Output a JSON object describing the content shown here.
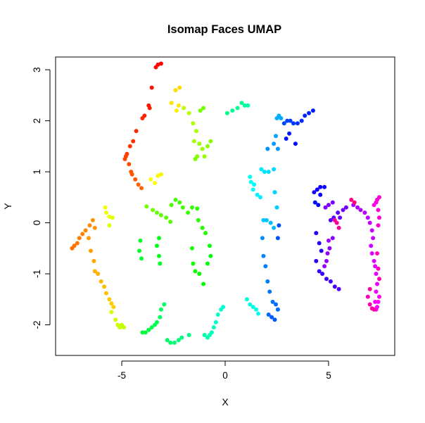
{
  "chart_data": {
    "type": "scatter",
    "title": "Isomap Faces UMAP",
    "xlabel": "X",
    "ylabel": "Y",
    "xlim": [
      -8.2,
      8.2
    ],
    "ylim": [
      -2.6,
      3.25
    ],
    "x_ticks": [
      -5,
      0,
      5
    ],
    "x_tick_labels": [
      "-5",
      "0",
      "5"
    ],
    "y_ticks": [
      -2,
      -1,
      0,
      1,
      2,
      3
    ],
    "y_tick_labels": [
      "-2",
      "-1",
      "0",
      "1",
      "2",
      "3"
    ],
    "grid": false,
    "legend": "none",
    "color_scale": "rainbow hue by point order (red → yellow → green → cyan → blue → magenta → pink)",
    "points": [
      [
        -3.1,
        3.12
      ],
      [
        -3.25,
        3.1
      ],
      [
        -3.35,
        3.05
      ],
      [
        -3.55,
        2.65
      ],
      [
        -3.7,
        2.3
      ],
      [
        -3.65,
        2.25
      ],
      [
        -3.9,
        2.1
      ],
      [
        -4.0,
        2.05
      ],
      [
        -4.3,
        1.8
      ],
      [
        -4.45,
        1.6
      ],
      [
        -4.6,
        1.5
      ],
      [
        -4.75,
        1.35
      ],
      [
        -4.8,
        1.3
      ],
      [
        -4.85,
        1.25
      ],
      [
        -4.65,
        1.15
      ],
      [
        -4.55,
        1.0
      ],
      [
        -4.5,
        0.95
      ],
      [
        -4.35,
        0.85
      ],
      [
        -4.2,
        0.75
      ],
      [
        -4.05,
        0.68
      ],
      [
        -7.4,
        -0.5
      ],
      [
        -7.3,
        -0.45
      ],
      [
        -7.15,
        -0.4
      ],
      [
        -7.05,
        -0.3
      ],
      [
        -6.9,
        -0.22
      ],
      [
        -6.75,
        -0.15
      ],
      [
        -6.55,
        -0.05
      ],
      [
        -6.4,
        0.05
      ],
      [
        -6.3,
        -0.1
      ],
      [
        -6.6,
        -0.3
      ],
      [
        -6.5,
        -0.55
      ],
      [
        -6.35,
        -0.75
      ],
      [
        -6.3,
        -0.95
      ],
      [
        -6.15,
        -1.0
      ],
      [
        -6.0,
        -1.15
      ],
      [
        -5.85,
        -1.25
      ],
      [
        -5.75,
        -1.38
      ],
      [
        -5.6,
        -1.5
      ],
      [
        -5.5,
        -1.58
      ],
      [
        -5.4,
        -1.65
      ],
      [
        -2.2,
        2.65
      ],
      [
        -2.4,
        2.6
      ],
      [
        -2.6,
        2.35
      ],
      [
        -2.25,
        2.3
      ],
      [
        -2.35,
        2.2
      ],
      [
        -3.1,
        0.95
      ],
      [
        -3.25,
        0.92
      ],
      [
        -3.4,
        0.78
      ],
      [
        -3.6,
        0.85
      ],
      [
        -5.8,
        0.3
      ],
      [
        -5.75,
        0.2
      ],
      [
        -5.6,
        0.12
      ],
      [
        -5.45,
        0.1
      ],
      [
        -5.6,
        -0.05
      ],
      [
        -5.5,
        -1.75
      ],
      [
        -5.3,
        -1.9
      ],
      [
        -5.2,
        -2.0
      ],
      [
        -5.1,
        -2.05
      ],
      [
        -5.0,
        -2.0
      ],
      [
        -4.9,
        -2.05
      ],
      [
        -2.0,
        2.25
      ],
      [
        -1.75,
        2.15
      ],
      [
        -1.55,
        1.95
      ],
      [
        -1.4,
        1.8
      ],
      [
        -1.5,
        1.6
      ],
      [
        -1.25,
        1.55
      ],
      [
        -1.1,
        1.45
      ],
      [
        -1.0,
        1.3
      ],
      [
        -0.85,
        1.5
      ],
      [
        -0.7,
        1.6
      ],
      [
        -1.35,
        1.3
      ],
      [
        -1.45,
        1.25
      ],
      [
        -1.2,
        2.2
      ],
      [
        -1.05,
        2.25
      ],
      [
        -3.8,
        0.32
      ],
      [
        -3.5,
        0.25
      ],
      [
        -3.3,
        0.2
      ],
      [
        -3.1,
        0.15
      ],
      [
        -2.85,
        0.1
      ],
      [
        -2.65,
        0.02
      ],
      [
        -2.6,
        0.35
      ],
      [
        -2.4,
        0.45
      ],
      [
        -2.2,
        0.4
      ],
      [
        -2.05,
        0.3
      ],
      [
        -1.8,
        0.2
      ],
      [
        -1.6,
        0.3
      ],
      [
        -1.35,
        0.28
      ],
      [
        -1.3,
        0.05
      ],
      [
        -1.1,
        -0.1
      ],
      [
        -0.95,
        -0.2
      ],
      [
        -1.6,
        -0.5
      ],
      [
        -1.55,
        -0.8
      ],
      [
        -1.45,
        -0.95
      ],
      [
        -1.25,
        -1.0
      ],
      [
        -1.05,
        -1.2
      ],
      [
        -0.85,
        -0.8
      ],
      [
        -0.75,
        -0.45
      ],
      [
        -0.7,
        -0.65
      ],
      [
        -3.2,
        -0.3
      ],
      [
        -3.3,
        -0.45
      ],
      [
        -3.2,
        -0.65
      ],
      [
        -3.15,
        -0.8
      ],
      [
        -4.1,
        -0.35
      ],
      [
        -4.15,
        -0.55
      ],
      [
        -4.05,
        -0.7
      ],
      [
        -4.0,
        -2.15
      ],
      [
        -3.85,
        -2.15
      ],
      [
        -3.7,
        -2.1
      ],
      [
        -3.55,
        -2.05
      ],
      [
        -3.4,
        -2.0
      ],
      [
        -3.3,
        -1.95
      ],
      [
        -3.15,
        -1.85
      ],
      [
        -3.1,
        -1.7
      ],
      [
        -2.95,
        -1.6
      ],
      [
        -2.8,
        -2.3
      ],
      [
        -2.65,
        -2.35
      ],
      [
        -2.45,
        -2.35
      ],
      [
        -2.25,
        -2.3
      ],
      [
        -2.1,
        -2.25
      ],
      [
        -1.75,
        -2.2
      ],
      [
        0.1,
        2.15
      ],
      [
        0.35,
        2.2
      ],
      [
        0.6,
        2.25
      ],
      [
        0.8,
        2.35
      ],
      [
        0.95,
        2.3
      ],
      [
        1.1,
        2.3
      ],
      [
        -1.0,
        -2.2
      ],
      [
        -0.85,
        -2.25
      ],
      [
        -0.75,
        -2.2
      ],
      [
        -0.65,
        -2.15
      ],
      [
        -0.55,
        -2.05
      ],
      [
        -0.45,
        -1.95
      ],
      [
        -0.35,
        -1.8
      ],
      [
        -0.2,
        -1.7
      ],
      [
        -0.1,
        -1.65
      ],
      [
        1.05,
        -1.5
      ],
      [
        1.2,
        -1.6
      ],
      [
        1.35,
        -1.65
      ],
      [
        1.5,
        -1.7
      ],
      [
        1.6,
        -1.78
      ],
      [
        1.2,
        0.9
      ],
      [
        1.25,
        0.8
      ],
      [
        1.35,
        0.65
      ],
      [
        1.4,
        0.75
      ],
      [
        1.55,
        0.55
      ],
      [
        1.7,
        0.5
      ],
      [
        1.75,
        1.05
      ],
      [
        1.9,
        1.0
      ],
      [
        2.1,
        1.0
      ],
      [
        2.35,
        1.05
      ],
      [
        2.4,
        0.6
      ],
      [
        2.5,
        0.3
      ],
      [
        1.85,
        0.05
      ],
      [
        2.0,
        0.05
      ],
      [
        2.2,
        0.0
      ],
      [
        2.35,
        -0.1
      ],
      [
        2.5,
        2.05
      ],
      [
        2.6,
        2.1
      ],
      [
        2.7,
        2.05
      ],
      [
        2.45,
        1.7
      ],
      [
        2.35,
        1.55
      ],
      [
        2.55,
        1.45
      ],
      [
        2.05,
        1.45
      ],
      [
        1.8,
        -0.3
      ],
      [
        1.85,
        -0.65
      ],
      [
        1.95,
        -0.85
      ],
      [
        2.05,
        -1.15
      ],
      [
        2.15,
        -1.35
      ],
      [
        2.3,
        -1.55
      ],
      [
        2.45,
        -1.6
      ],
      [
        2.55,
        -1.7
      ],
      [
        2.1,
        -1.8
      ],
      [
        2.25,
        -1.85
      ],
      [
        2.4,
        -1.9
      ],
      [
        2.55,
        -0.3
      ],
      [
        2.6,
        -0.05
      ],
      [
        2.85,
        1.95
      ],
      [
        3.0,
        2.0
      ],
      [
        3.15,
        2.0
      ],
      [
        3.3,
        1.95
      ],
      [
        3.5,
        1.95
      ],
      [
        3.7,
        2.0
      ],
      [
        3.85,
        2.1
      ],
      [
        4.05,
        2.15
      ],
      [
        4.25,
        2.2
      ],
      [
        3.1,
        1.75
      ],
      [
        2.95,
        1.65
      ],
      [
        3.4,
        1.55
      ],
      [
        4.35,
        0.4
      ],
      [
        4.5,
        0.35
      ],
      [
        4.6,
        0.55
      ],
      [
        4.8,
        0.7
      ],
      [
        4.6,
        0.7
      ],
      [
        4.45,
        0.65
      ],
      [
        4.3,
        0.6
      ],
      [
        4.4,
        -0.2
      ],
      [
        4.55,
        -0.4
      ],
      [
        4.65,
        -0.55
      ],
      [
        4.4,
        -0.75
      ],
      [
        4.55,
        -0.95
      ],
      [
        4.7,
        -1.0
      ],
      [
        4.9,
        -1.1
      ],
      [
        5.1,
        -1.15
      ],
      [
        5.3,
        -1.25
      ],
      [
        5.5,
        -1.3
      ],
      [
        5.1,
        0.05
      ],
      [
        5.25,
        0.1
      ],
      [
        5.45,
        0.2
      ],
      [
        5.55,
        0.1
      ],
      [
        5.7,
        0.25
      ],
      [
        5.85,
        0.3
      ],
      [
        5.2,
        0.4
      ],
      [
        5.0,
        0.35
      ],
      [
        4.85,
        0.3
      ],
      [
        5.2,
        -0.3
      ],
      [
        5.05,
        -0.5
      ],
      [
        4.95,
        -0.6
      ],
      [
        4.9,
        -0.75
      ],
      [
        4.8,
        -0.85
      ],
      [
        5.0,
        -0.35
      ],
      [
        6.2,
        0.35
      ],
      [
        6.4,
        0.3
      ],
      [
        6.55,
        0.25
      ],
      [
        6.75,
        0.2
      ],
      [
        6.9,
        0.1
      ],
      [
        7.0,
        0.0
      ],
      [
        7.1,
        -0.15
      ],
      [
        7.15,
        -0.3
      ],
      [
        7.05,
        -0.45
      ],
      [
        7.1,
        -0.6
      ],
      [
        7.2,
        -0.75
      ],
      [
        7.25,
        -0.85
      ],
      [
        7.3,
        -1.0
      ],
      [
        7.35,
        -1.2
      ],
      [
        7.3,
        -1.35
      ],
      [
        7.25,
        -1.55
      ],
      [
        7.35,
        -1.65
      ],
      [
        7.4,
        -1.55
      ],
      [
        7.45,
        -1.45
      ],
      [
        7.3,
        -1.7
      ],
      [
        7.2,
        0.35
      ],
      [
        7.3,
        0.4
      ],
      [
        7.35,
        0.45
      ],
      [
        7.45,
        0.5
      ],
      [
        7.4,
        0.25
      ],
      [
        7.45,
        0.1
      ],
      [
        7.4,
        -0.05
      ],
      [
        7.35,
        -0.6
      ],
      [
        7.4,
        -0.9
      ],
      [
        7.45,
        -1.1
      ],
      [
        6.9,
        -1.45
      ],
      [
        7.0,
        -1.6
      ],
      [
        7.1,
        -1.68
      ],
      [
        7.2,
        -1.7
      ],
      [
        7.0,
        -1.3
      ],
      [
        5.4,
        0.0
      ],
      [
        5.5,
        -0.1
      ],
      [
        5.3,
        0.05
      ],
      [
        6.1,
        0.45
      ],
      [
        6.25,
        0.4
      ]
    ]
  }
}
